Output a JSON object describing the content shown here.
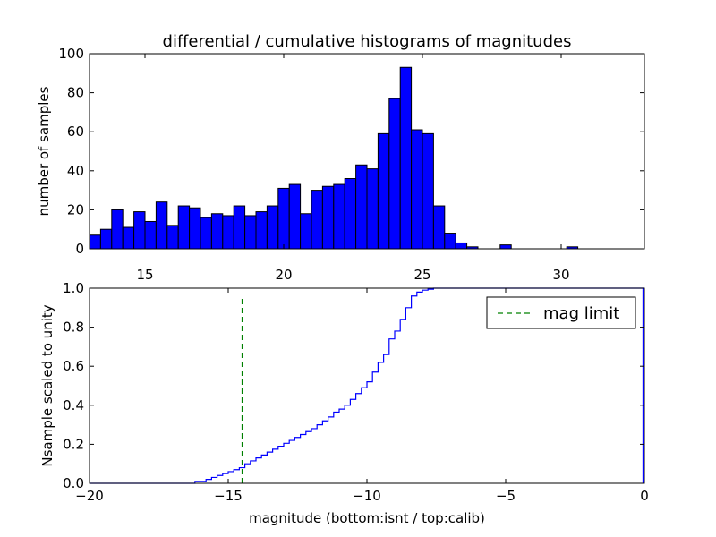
{
  "chart_data": [
    {
      "type": "bar",
      "title": "differential / cumulative histograms of magnitudes",
      "xlabel": "",
      "ylabel": "number of samples",
      "xlim": [
        13.0,
        33.0
      ],
      "ylim": [
        0,
        100
      ],
      "xticks": [
        15,
        20,
        25,
        30
      ],
      "xtick_labels": [
        "15",
        "20",
        "25",
        "30"
      ],
      "yticks": [
        0,
        20,
        40,
        60,
        80,
        100
      ],
      "ytick_labels": [
        "0",
        "20",
        "40",
        "60",
        "80",
        "100"
      ],
      "bar_color": "#0000ff",
      "bin_width": 0.4,
      "bins_start": [
        13.0,
        13.4,
        13.8,
        14.2,
        14.6,
        15.0,
        15.4,
        15.8,
        16.2,
        16.6,
        17.0,
        17.4,
        17.8,
        18.2,
        18.6,
        19.0,
        19.4,
        19.8,
        20.2,
        20.6,
        21.0,
        21.4,
        21.8,
        22.2,
        22.6,
        23.0,
        23.4,
        23.8,
        24.2,
        24.6,
        25.0,
        25.4,
        25.8,
        26.2,
        26.6,
        27.0,
        27.4,
        27.8,
        28.2,
        28.6,
        29.0,
        29.4,
        29.8,
        30.2,
        30.6,
        31.0,
        31.4,
        31.8,
        32.2,
        32.6
      ],
      "values": [
        7,
        10,
        20,
        11,
        19,
        14,
        24,
        12,
        22,
        21,
        16,
        18,
        17,
        22,
        17,
        19,
        22,
        31,
        33,
        18,
        30,
        32,
        33,
        36,
        43,
        41,
        59,
        77,
        93,
        61,
        59,
        22,
        8,
        3,
        1,
        0,
        0,
        2,
        0,
        0,
        0,
        0,
        0,
        1,
        0,
        0,
        0,
        0,
        0,
        0
      ]
    },
    {
      "type": "line",
      "title": "",
      "xlabel": "magnitude (bottom:isnt / top:calib)",
      "ylabel": "Nsample scaled to unity",
      "xlim": [
        -20,
        0
      ],
      "ylim": [
        0,
        1.0
      ],
      "xticks": [
        -20,
        -15,
        -10,
        -5,
        0
      ],
      "xtick_labels": [
        "−20",
        "−15",
        "−10",
        "−5",
        "0"
      ],
      "yticks": [
        0,
        0.2,
        0.4,
        0.6,
        0.8,
        1.0
      ],
      "ytick_labels": [
        "0.0",
        "0.2",
        "0.4",
        "0.6",
        "0.8",
        "1.0"
      ],
      "series": [
        {
          "name": "cumulative",
          "color": "#0000ff",
          "style": "step",
          "x": [
            -20.0,
            -16.2,
            -15.8,
            -15.6,
            -15.4,
            -15.2,
            -15.0,
            -14.8,
            -14.6,
            -14.4,
            -14.2,
            -14.0,
            -13.8,
            -13.6,
            -13.4,
            -13.2,
            -13.0,
            -12.8,
            -12.6,
            -12.4,
            -12.2,
            -12.0,
            -11.8,
            -11.6,
            -11.4,
            -11.2,
            -11.0,
            -10.8,
            -10.6,
            -10.4,
            -10.2,
            -10.0,
            -9.8,
            -9.6,
            -9.4,
            -9.2,
            -9.0,
            -8.8,
            -8.6,
            -8.4,
            -8.2,
            -8.0,
            -7.8,
            -7.6,
            -7.4,
            -6.8,
            -0.05
          ],
          "y": [
            0.0,
            0.01,
            0.02,
            0.03,
            0.04,
            0.05,
            0.06,
            0.07,
            0.08,
            0.1,
            0.115,
            0.13,
            0.145,
            0.16,
            0.175,
            0.19,
            0.205,
            0.22,
            0.235,
            0.25,
            0.265,
            0.28,
            0.3,
            0.32,
            0.34,
            0.365,
            0.38,
            0.4,
            0.43,
            0.46,
            0.49,
            0.52,
            0.57,
            0.62,
            0.66,
            0.74,
            0.78,
            0.84,
            0.9,
            0.96,
            0.98,
            0.99,
            0.995,
            1.0,
            1.0,
            1.0,
            1.0
          ]
        },
        {
          "name": "mag limit",
          "color": "#008000",
          "style": "dashed-vertical",
          "x": [
            -14.5,
            -14.5
          ],
          "y": [
            0,
            0.95
          ]
        }
      ],
      "legend": {
        "position": "top-right",
        "entries": [
          "mag limit"
        ]
      }
    }
  ]
}
